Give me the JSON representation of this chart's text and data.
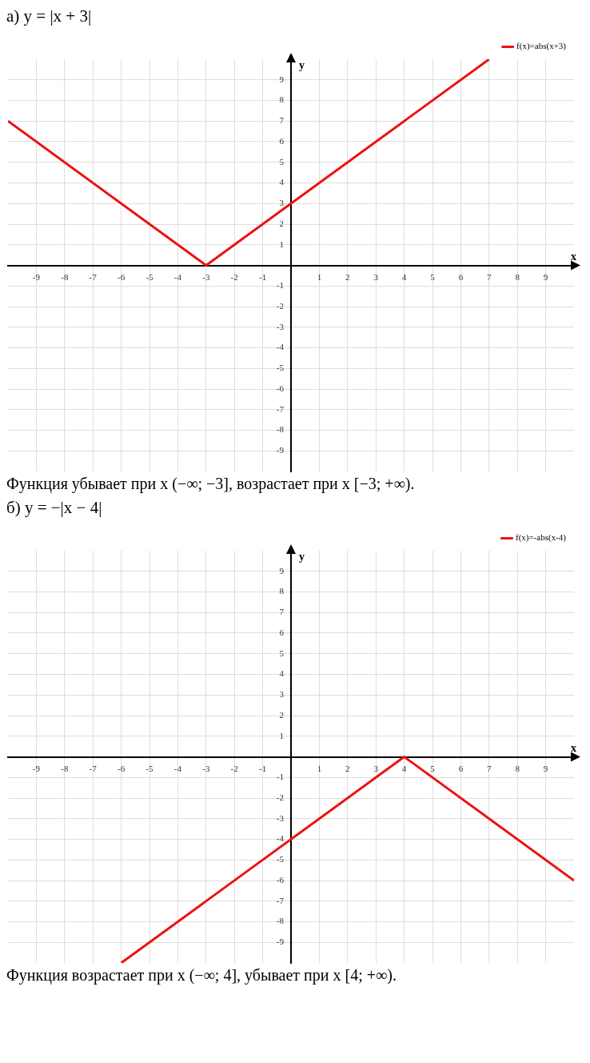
{
  "chart_data": [
    {
      "type": "line",
      "title": "а) y = |x + 3|",
      "xlabel": "x",
      "ylabel": "y",
      "x": [
        -10,
        -3,
        7
      ],
      "series": [
        {
          "name": "f(x)=abs(x+3)",
          "color": "#ee1111",
          "values": [
            7,
            0,
            10
          ]
        }
      ],
      "xlim": [
        -10,
        10
      ],
      "ylim": [
        -10,
        10
      ],
      "xticks": [
        -9,
        -8,
        -7,
        -6,
        -5,
        -4,
        -3,
        -2,
        -1,
        1,
        2,
        3,
        4,
        5,
        6,
        7,
        8,
        9
      ],
      "yticks": [
        -9,
        -8,
        -7,
        -6,
        -5,
        -4,
        -3,
        -2,
        -1,
        1,
        2,
        3,
        4,
        5,
        6,
        7,
        8,
        9
      ],
      "grid": true,
      "legend": "top right",
      "marker": "none",
      "line_style": "solid",
      "annotations": [
        "Функция убывает при x (−∞; −3], возрастает при x [−3; +∞)."
      ]
    },
    {
      "type": "line",
      "title": "б) y = −|x − 4|",
      "xlabel": "x",
      "ylabel": "y",
      "x": [
        -6,
        4,
        10
      ],
      "series": [
        {
          "name": "f(x)=-abs(x-4)",
          "color": "#ee1111",
          "values": [
            -10,
            0,
            -6
          ]
        }
      ],
      "xlim": [
        -10,
        10
      ],
      "ylim": [
        -10,
        10
      ],
      "xticks": [
        -9,
        -8,
        -7,
        -6,
        -5,
        -4,
        -3,
        -2,
        -1,
        1,
        2,
        3,
        4,
        5,
        6,
        7,
        8,
        9
      ],
      "yticks": [
        -9,
        -8,
        -7,
        -6,
        -5,
        -4,
        -3,
        -2,
        -1,
        1,
        2,
        3,
        4,
        5,
        6,
        7,
        8,
        9
      ],
      "grid": true,
      "legend": "top right",
      "marker": "none",
      "line_style": "solid",
      "annotations": [
        "Функция возрастает при x (−∞; 4], убывает при x [4; +∞)."
      ]
    }
  ]
}
